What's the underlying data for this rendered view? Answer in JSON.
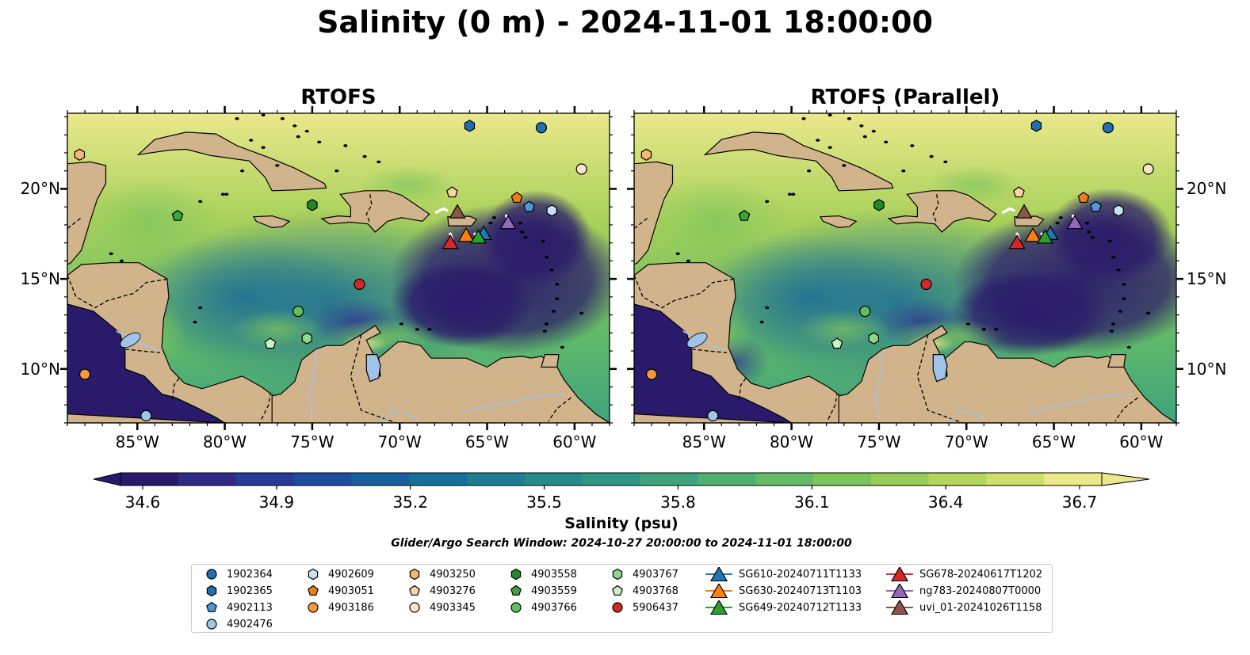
{
  "figure": {
    "title": "Salinity (0 m) - 2024-11-01 18:00:00",
    "search_window": "Glider/Argo Search Window: 2024-10-27 20:00:00 to 2024-11-01 18:00:00"
  },
  "panels": [
    {
      "title": "RTOFS",
      "variant": "control"
    },
    {
      "title": "RTOFS (Parallel)",
      "variant": "parallel"
    }
  ],
  "map_extent": {
    "lon_min": -89,
    "lon_max": -58,
    "lat_min": 7,
    "lat_max": 24.2
  },
  "axes": {
    "lat_ticks": [
      {
        "value": 20,
        "label": "20°N"
      },
      {
        "value": 15,
        "label": "15°N"
      },
      {
        "value": 10,
        "label": "10°N"
      }
    ],
    "lon_ticks": [
      {
        "value": -85,
        "label": "85°W"
      },
      {
        "value": -80,
        "label": "80°W"
      },
      {
        "value": -75,
        "label": "75°W"
      },
      {
        "value": -70,
        "label": "70°W"
      },
      {
        "value": -65,
        "label": "65°W"
      },
      {
        "value": -60,
        "label": "60°W"
      }
    ]
  },
  "colorbar": {
    "label": "Salinity (psu)",
    "min": 34.6,
    "max": 36.7,
    "ticks": [
      "34.6",
      "34.9",
      "35.2",
      "35.5",
      "35.8",
      "36.1",
      "36.4",
      "36.7"
    ],
    "colors": [
      "#2a1a6b",
      "#2e2a86",
      "#2a3a99",
      "#1f4d9e",
      "#17609d",
      "#166f98",
      "#1e7d91",
      "#278a8a",
      "#319785",
      "#3ea37d",
      "#4eaf73",
      "#63ba67",
      "#7dc45d",
      "#97cd58",
      "#b3d65c",
      "#cfdf6c",
      "#ece98a"
    ],
    "extend": "both"
  },
  "colors": {
    "land": "#d2b48c",
    "lake": "#9fc3e9",
    "deep_low_salinity": "#2a1a6b",
    "high_salinity": "#f0ea8c"
  },
  "legend": {
    "columns": [
      [
        {
          "label": "1902364",
          "marker": "circle",
          "color": "#1f6fb2"
        },
        {
          "label": "1902365",
          "marker": "hexagon",
          "color": "#1f6fb2"
        },
        {
          "label": "4902113",
          "marker": "pentagon",
          "color": "#4c97d6"
        },
        {
          "label": "4902476",
          "marker": "circle",
          "color": "#9ec8ea"
        }
      ],
      [
        {
          "label": "4902609",
          "marker": "hexagon",
          "color": "#c6e2f5"
        },
        {
          "label": "4903051",
          "marker": "pentagon",
          "color": "#ee7d14"
        },
        {
          "label": "4903186",
          "marker": "circle",
          "color": "#f59a3a"
        }
      ],
      [
        {
          "label": "4903250",
          "marker": "hexagon",
          "color": "#f8b873"
        },
        {
          "label": "4903276",
          "marker": "pentagon",
          "color": "#fbd3a6"
        },
        {
          "label": "4903345",
          "marker": "circle",
          "color": "#fde3c8"
        }
      ],
      [
        {
          "label": "4903558",
          "marker": "hexagon",
          "color": "#1e8a2a"
        },
        {
          "label": "4903559",
          "marker": "pentagon",
          "color": "#3aa43a"
        },
        {
          "label": "4903766",
          "marker": "circle",
          "color": "#5fc05a"
        }
      ],
      [
        {
          "label": "4903767",
          "marker": "hexagon",
          "color": "#8fd88a"
        },
        {
          "label": "4903768",
          "marker": "pentagon",
          "color": "#c8f2bf"
        },
        {
          "label": "5906437",
          "marker": "circle",
          "color": "#d62728"
        }
      ],
      [
        {
          "label": "SG610-20240711T1133",
          "marker": "triangle",
          "color": "#1f77b4"
        },
        {
          "label": "SG630-20240713T1103",
          "marker": "triangle",
          "color": "#ff7f0e"
        },
        {
          "label": "SG649-20240712T1133",
          "marker": "triangle",
          "color": "#2ca02c"
        }
      ],
      [
        {
          "label": "SG678-20240617T1202",
          "marker": "triangle",
          "color": "#d62728"
        },
        {
          "label": "ng783-20240807T0000",
          "marker": "triangle",
          "color": "#9467bd"
        },
        {
          "label": "uvi_01-20241026T1158",
          "marker": "triangle",
          "color": "#8c564b"
        }
      ]
    ]
  },
  "observations": [
    {
      "id": "1902364",
      "lon": -61.9,
      "lat": 23.4
    },
    {
      "id": "1902365",
      "lon": -66.0,
      "lat": 23.5
    },
    {
      "id": "4902113",
      "lon": -62.6,
      "lat": 19.0
    },
    {
      "id": "4902476",
      "lon": -84.5,
      "lat": 7.4
    },
    {
      "id": "4902609",
      "lon": -61.3,
      "lat": 18.8
    },
    {
      "id": "4903051",
      "lon": -63.3,
      "lat": 19.5
    },
    {
      "id": "4903186",
      "lon": -88.0,
      "lat": 9.7
    },
    {
      "id": "4903250",
      "lon": -88.3,
      "lat": 21.9
    },
    {
      "id": "4903276",
      "lon": -67.0,
      "lat": 19.8
    },
    {
      "id": "4903345",
      "lon": -59.6,
      "lat": 21.1
    },
    {
      "id": "4903558",
      "lon": -75.0,
      "lat": 19.1
    },
    {
      "id": "4903559",
      "lon": -82.7,
      "lat": 18.5
    },
    {
      "id": "4903766",
      "lon": -75.8,
      "lat": 13.2
    },
    {
      "id": "4903767",
      "lon": -75.3,
      "lat": 11.7
    },
    {
      "id": "4903768",
      "lon": -77.4,
      "lat": 11.4
    },
    {
      "id": "5906437",
      "lon": -72.3,
      "lat": 14.7
    },
    {
      "id": "SG610-20240711T1133",
      "lon": -65.2,
      "lat": 17.5
    },
    {
      "id": "SG630-20240713T1103",
      "lon": -66.2,
      "lat": 17.4
    },
    {
      "id": "SG649-20240712T1133",
      "lon": -65.5,
      "lat": 17.3
    },
    {
      "id": "SG678-20240617T1202",
      "lon": -67.1,
      "lat": 17.0
    },
    {
      "id": "ng783-20240807T0000",
      "lon": -63.8,
      "lat": 18.1
    },
    {
      "id": "uvi_01-20241026T1158",
      "lon": -66.7,
      "lat": 18.7
    }
  ]
}
